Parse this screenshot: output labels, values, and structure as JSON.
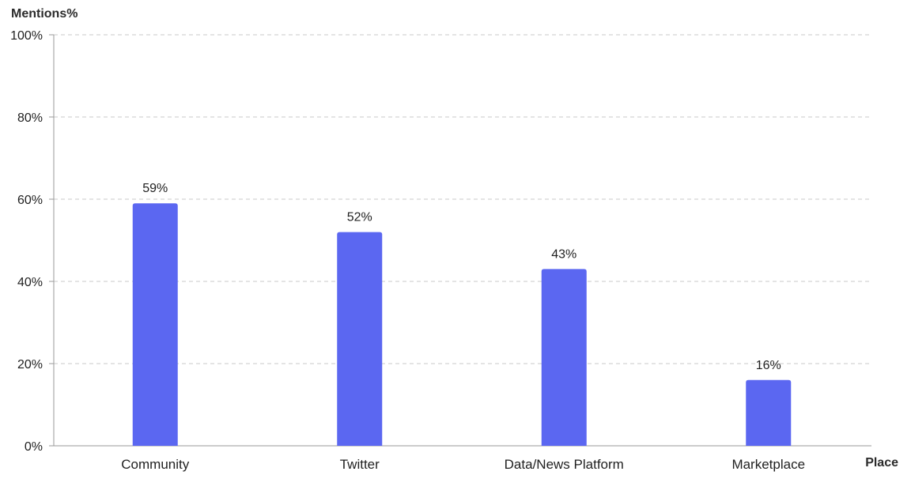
{
  "chart_data": {
    "type": "bar",
    "title": "",
    "ylabel": "Mentions%",
    "xlabel": "Place",
    "categories": [
      "Community",
      "Twitter",
      "Data/News Platform",
      "Marketplace"
    ],
    "values": [
      59,
      52,
      43,
      16
    ],
    "value_labels": [
      "59%",
      "52%",
      "43%",
      "16%"
    ],
    "ylim": [
      0,
      100
    ],
    "yticks": [
      0,
      20,
      40,
      60,
      80,
      100
    ],
    "ytick_labels": [
      "0%",
      "20%",
      "40%",
      "60%",
      "80%",
      "100%"
    ],
    "grid": true,
    "bar_color": "#5b67f1",
    "legend": "none"
  }
}
